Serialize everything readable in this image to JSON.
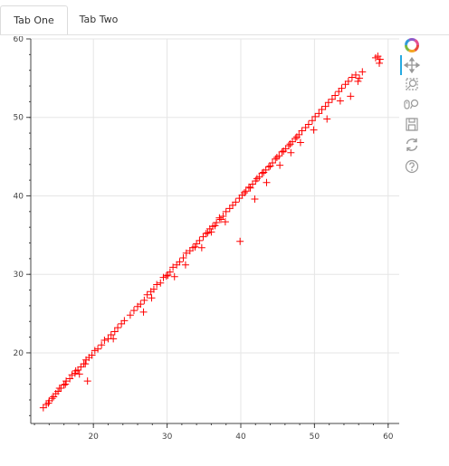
{
  "tabs": [
    {
      "label": "Tab One",
      "active": true
    },
    {
      "label": "Tab Two",
      "active": false
    }
  ],
  "toolbar": {
    "items": [
      "bokeh-logo-icon",
      "pan-icon",
      "box-zoom-icon",
      "wheel-zoom-icon",
      "save-icon",
      "reset-icon",
      "help-icon"
    ],
    "active_item": "pan-icon",
    "active_color": "#26aae1"
  },
  "chart_data": {
    "type": "scatter",
    "marker": "cross",
    "color": "#ff0000",
    "title": "",
    "xlabel": "",
    "ylabel": "",
    "xlim": [
      11.5,
      61.5
    ],
    "ylim": [
      11.0,
      60.0
    ],
    "xticks": [
      20,
      30,
      40,
      50,
      60
    ],
    "yticks": [
      20,
      30,
      40,
      50,
      60
    ],
    "grid": true,
    "points": [
      [
        13.2,
        13.0
      ],
      [
        13.6,
        13.4
      ],
      [
        14.0,
        13.9
      ],
      [
        14.4,
        14.2
      ],
      [
        14.9,
        14.8
      ],
      [
        15.2,
        15.1
      ],
      [
        15.6,
        15.5
      ],
      [
        16.0,
        15.9
      ],
      [
        16.3,
        16.4
      ],
      [
        16.8,
        16.7
      ],
      [
        17.1,
        17.2
      ],
      [
        17.5,
        17.4
      ],
      [
        17.9,
        17.8
      ],
      [
        18.3,
        18.2
      ],
      [
        18.7,
        18.6
      ],
      [
        19.0,
        19.1
      ],
      [
        19.4,
        19.4
      ],
      [
        19.8,
        19.7
      ],
      [
        16.2,
        16.0
      ],
      [
        17.6,
        17.7
      ],
      [
        18.9,
        18.6
      ],
      [
        15.4,
        15.5
      ],
      [
        14.6,
        14.4
      ],
      [
        13.9,
        13.6
      ],
      [
        19.2,
        16.4
      ],
      [
        18.1,
        17.3
      ],
      [
        20.2,
        20.3
      ],
      [
        20.6,
        20.5
      ],
      [
        21.1,
        21.0
      ],
      [
        21.5,
        21.6
      ],
      [
        22.0,
        21.8
      ],
      [
        22.4,
        22.3
      ],
      [
        22.9,
        22.7
      ],
      [
        23.3,
        23.2
      ],
      [
        23.8,
        23.7
      ],
      [
        24.2,
        24.1
      ],
      [
        22.7,
        21.8
      ],
      [
        25.0,
        24.8
      ],
      [
        25.5,
        25.4
      ],
      [
        26.0,
        25.9
      ],
      [
        26.4,
        26.2
      ],
      [
        26.9,
        26.7
      ],
      [
        27.3,
        27.4
      ],
      [
        27.8,
        27.8
      ],
      [
        28.2,
        28.1
      ],
      [
        28.6,
        28.7
      ],
      [
        29.1,
        28.9
      ],
      [
        29.5,
        29.6
      ],
      [
        26.8,
        25.2
      ],
      [
        27.9,
        27.0
      ],
      [
        29.9,
        29.8
      ],
      [
        30.4,
        30.3
      ],
      [
        30.8,
        30.9
      ],
      [
        31.3,
        31.2
      ],
      [
        31.7,
        31.6
      ],
      [
        32.2,
        32.1
      ],
      [
        32.6,
        32.7
      ],
      [
        33.1,
        33.0
      ],
      [
        33.5,
        33.4
      ],
      [
        34.0,
        33.9
      ],
      [
        34.4,
        34.3
      ],
      [
        34.9,
        34.8
      ],
      [
        35.3,
        35.2
      ],
      [
        35.8,
        35.8
      ],
      [
        36.2,
        36.1
      ],
      [
        36.7,
        36.6
      ],
      [
        37.1,
        37.2
      ],
      [
        37.6,
        37.4
      ],
      [
        38.0,
        38.0
      ],
      [
        38.5,
        38.4
      ],
      [
        31.0,
        29.7
      ],
      [
        32.5,
        31.2
      ],
      [
        34.7,
        33.4
      ],
      [
        36.0,
        35.4
      ],
      [
        37.9,
        36.7
      ],
      [
        38.9,
        38.8
      ],
      [
        39.3,
        39.2
      ],
      [
        39.8,
        39.7
      ],
      [
        40.2,
        40.1
      ],
      [
        40.7,
        40.6
      ],
      [
        41.1,
        41.1
      ],
      [
        41.6,
        41.5
      ],
      [
        42.0,
        41.9
      ],
      [
        42.5,
        42.4
      ],
      [
        42.9,
        42.9
      ],
      [
        43.4,
        43.3
      ],
      [
        43.8,
        43.7
      ],
      [
        44.3,
        44.2
      ],
      [
        44.7,
        44.7
      ],
      [
        45.2,
        45.1
      ],
      [
        45.6,
        45.6
      ],
      [
        46.1,
        46.0
      ],
      [
        46.5,
        46.4
      ],
      [
        47.0,
        46.9
      ],
      [
        47.4,
        47.3
      ],
      [
        47.9,
        47.8
      ],
      [
        48.3,
        48.3
      ],
      [
        48.8,
        48.7
      ],
      [
        49.2,
        49.1
      ],
      [
        39.9,
        34.2
      ],
      [
        41.9,
        39.6
      ],
      [
        43.5,
        41.7
      ],
      [
        45.3,
        43.9
      ],
      [
        46.8,
        45.5
      ],
      [
        48.1,
        46.8
      ],
      [
        49.7,
        49.6
      ],
      [
        50.1,
        50.1
      ],
      [
        50.6,
        50.5
      ],
      [
        51.0,
        51.0
      ],
      [
        51.5,
        51.4
      ],
      [
        51.9,
        51.9
      ],
      [
        52.4,
        52.3
      ],
      [
        52.8,
        52.8
      ],
      [
        53.3,
        53.3
      ],
      [
        53.7,
        53.7
      ],
      [
        54.2,
        54.2
      ],
      [
        54.6,
        54.6
      ],
      [
        55.1,
        55.1
      ],
      [
        55.6,
        55.4
      ],
      [
        49.9,
        48.4
      ],
      [
        51.7,
        49.8
      ],
      [
        53.5,
        52.1
      ],
      [
        54.9,
        52.7
      ],
      [
        55.9,
        54.6
      ],
      [
        56.1,
        55.0
      ],
      [
        56.5,
        55.8
      ],
      [
        58.3,
        57.6
      ],
      [
        58.6,
        57.8
      ],
      [
        58.9,
        57.4
      ],
      [
        58.8,
        56.9
      ],
      [
        40.5,
        40.4
      ],
      [
        41.3,
        41.0
      ],
      [
        42.2,
        42.2
      ],
      [
        43.1,
        43.0
      ],
      [
        44.0,
        43.8
      ],
      [
        44.9,
        44.9
      ],
      [
        45.8,
        45.7
      ],
      [
        46.7,
        46.6
      ],
      [
        47.6,
        47.5
      ],
      [
        35.5,
        35.3
      ],
      [
        36.5,
        36.2
      ],
      [
        37.3,
        37.0
      ],
      [
        33.8,
        33.5
      ],
      [
        30.1,
        29.9
      ]
    ]
  }
}
